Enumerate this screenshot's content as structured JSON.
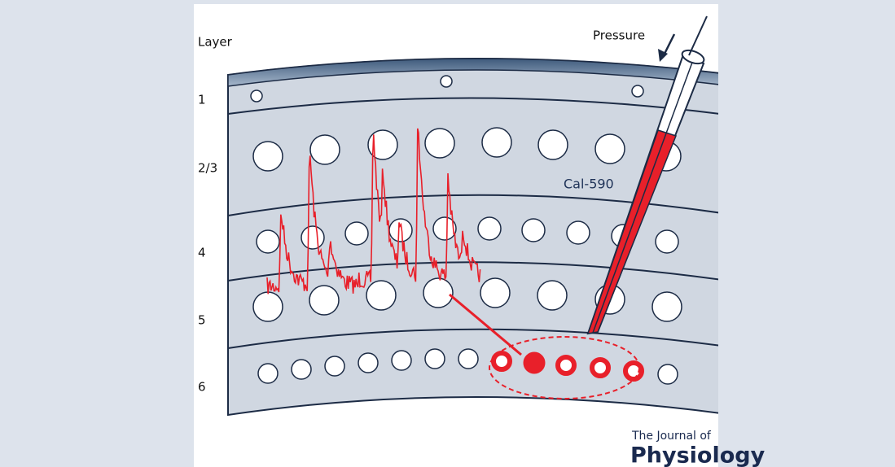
{
  "labels": {
    "heading": "Layer",
    "layers": [
      "1",
      "2/3",
      "4",
      "5",
      "6"
    ]
  },
  "annotations": {
    "pressure": "Pressure",
    "dye": "Cal-590"
  },
  "logo": {
    "line1": "The Journal of",
    "line2": "Physiology"
  }
}
